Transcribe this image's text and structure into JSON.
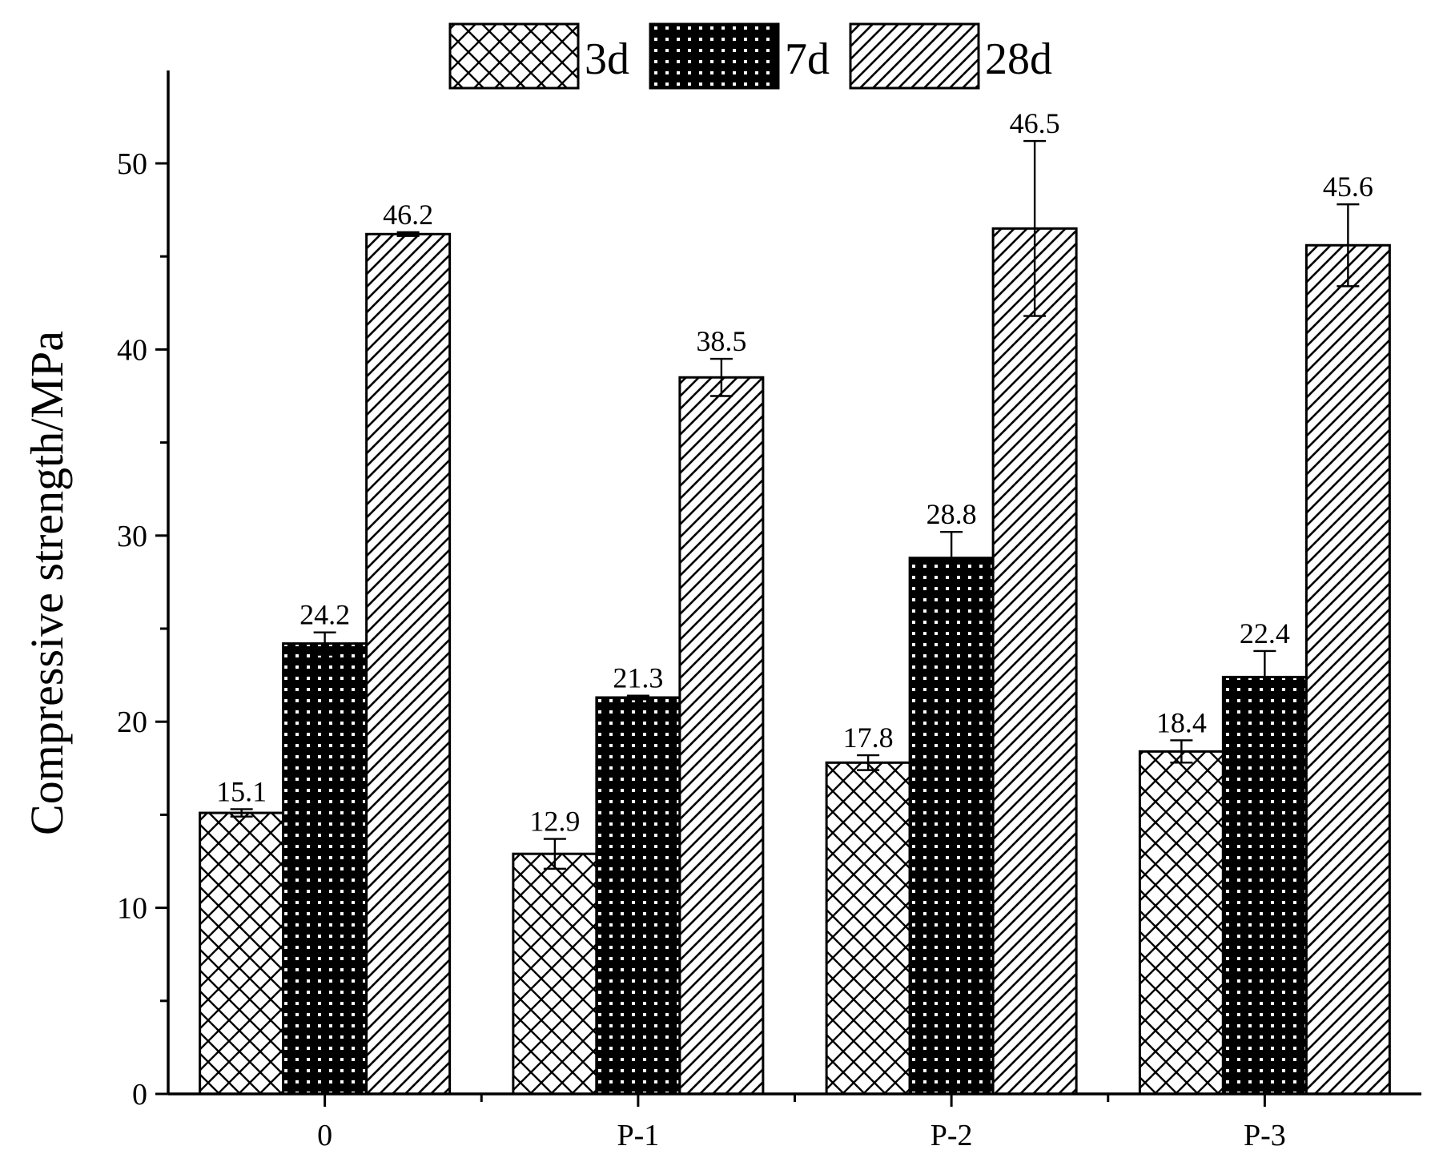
{
  "chart_data": {
    "type": "bar",
    "title": "",
    "xlabel": "",
    "ylabel": "Compressive strength/MPa",
    "ylim": [
      0,
      55
    ],
    "yticks": [
      0,
      10,
      20,
      30,
      40,
      50
    ],
    "grid": false,
    "legend_position": "top-center",
    "categories": [
      "0",
      "P-1",
      "P-2",
      "P-3"
    ],
    "series": [
      {
        "name": "3d",
        "pattern": "crosshatch",
        "color": "#000000",
        "values": [
          15.1,
          12.9,
          17.8,
          18.4
        ],
        "errors": [
          0.2,
          0.8,
          0.4,
          0.6
        ],
        "labels": [
          "15.1",
          "12.9",
          "17.8",
          "18.4"
        ]
      },
      {
        "name": "7d",
        "pattern": "dots",
        "color": "#000000",
        "values": [
          24.2,
          21.3,
          28.8,
          22.4
        ],
        "errors": [
          0.6,
          0.1,
          1.4,
          1.4
        ],
        "labels": [
          "24.2",
          "21.3",
          "28.8",
          "22.4"
        ]
      },
      {
        "name": "28d",
        "pattern": "diagonal",
        "color": "#000000",
        "values": [
          46.2,
          38.5,
          46.5,
          45.6
        ],
        "errors": [
          0.1,
          1.0,
          4.7,
          2.2
        ],
        "labels": [
          "46.2",
          "38.5",
          "46.5",
          "45.6"
        ]
      }
    ]
  }
}
